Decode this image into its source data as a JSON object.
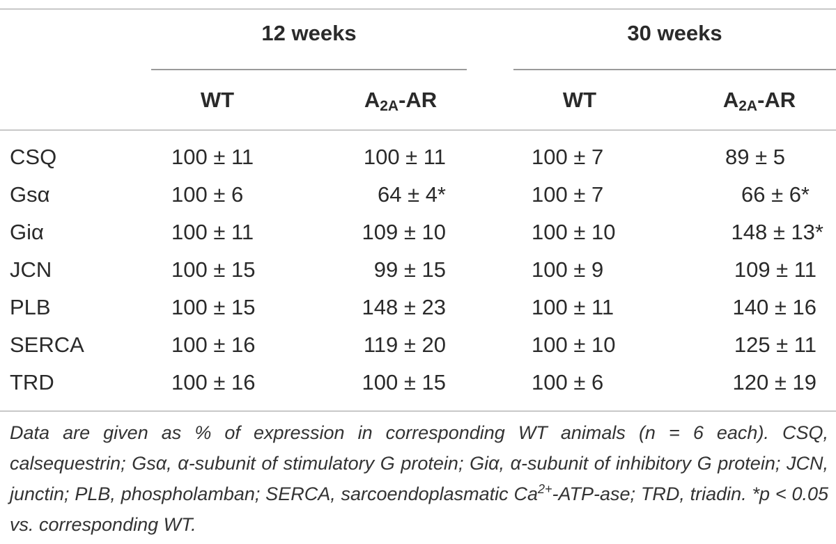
{
  "groups": {
    "g1": "12 weeks",
    "g2": "30 weeks"
  },
  "columns": {
    "wt1": "WT",
    "ar1": {
      "prefix": "A",
      "sub": "2A",
      "suffix": "-AR"
    },
    "wt2": "WT",
    "ar2": {
      "prefix": "A",
      "sub": "2A",
      "suffix": "-AR"
    }
  },
  "rows": [
    {
      "name": "CSQ",
      "wt12": "100 ± 11",
      "ar12": "100 ± 11",
      "wt30": "100 ± 7",
      "ar30": "89 ± 5"
    },
    {
      "name": "Gsα",
      "wt12": "100 ± 6",
      "ar12": "64 ± 4*",
      "wt30": "100 ± 7",
      "ar30": "66 ± 6*"
    },
    {
      "name": "Giα",
      "wt12": "100 ± 11",
      "ar12": "109 ± 10",
      "wt30": "100 ± 10",
      "ar30": "148 ± 13*"
    },
    {
      "name": "JCN",
      "wt12": "100 ± 15",
      "ar12": "99 ± 15",
      "wt30": "100 ± 9",
      "ar30": "109 ± 11"
    },
    {
      "name": "PLB",
      "wt12": "100 ± 15",
      "ar12": "148 ± 23",
      "wt30": "100 ± 11",
      "ar30": "140 ± 16"
    },
    {
      "name": "SERCA",
      "wt12": "100 ± 16",
      "ar12": "119 ± 20",
      "wt30": "100 ± 10",
      "ar30": "125 ± 11"
    },
    {
      "name": "TRD",
      "wt12": "100 ± 16",
      "ar12": "100 ± 15",
      "wt30": "100 ± 6",
      "ar30": "120 ± 19"
    }
  ],
  "footnote": {
    "part1": "Data are given as % of expression in corresponding WT animals (n = 6 each). CSQ, calsequestrin; Gsα, α-subunit of stimulatory G protein; Giα, α-subunit of inhibitory G protein; JCN, junctin; PLB, phospholamban; SERCA, sarcoendoplasmatic Ca",
    "sup": "2+",
    "part2": "-ATP-ase; TRD, triadin. *p < 0.05 vs. corresponding WT."
  }
}
